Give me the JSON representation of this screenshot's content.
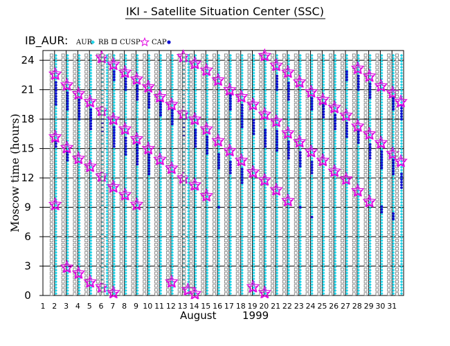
{
  "chart_data": {
    "type": "scatter",
    "title": "IKI - Satellite Situation Center (SSC)",
    "panel_label": "IB_AUR:",
    "legend": [
      {
        "key": "aur",
        "label": "AUR",
        "marker": "cyan-diamond",
        "color": "#1fd3e8"
      },
      {
        "key": "rb",
        "label": "RB",
        "marker": "open-square",
        "color": "#707070"
      },
      {
        "key": "cusp",
        "label": "CUSP",
        "marker": "magenta-star",
        "color": "#e000e0"
      },
      {
        "key": "cap",
        "label": "CAP",
        "marker": "blue-dot",
        "color": "#1010d0"
      }
    ],
    "xlabel_month": "August",
    "xlabel_year": "1999",
    "ylabel": "Moscow time (hours)",
    "xlim": [
      1,
      32
    ],
    "ylim": [
      0,
      25
    ],
    "x_ticks": [
      "1",
      "2",
      "3",
      "4",
      "5",
      "6",
      "7",
      "8",
      "9",
      "10",
      "11",
      "12",
      "13",
      "14",
      "15",
      "16",
      "17",
      "18",
      "19",
      "20",
      "21",
      "22",
      "23",
      "24",
      "25",
      "26",
      "27",
      "28",
      "29",
      "30",
      "31"
    ],
    "y_ticks": [
      "0",
      "3",
      "6",
      "9",
      "12",
      "15",
      "18",
      "21",
      "24"
    ],
    "orbit_columns": [
      {
        "day": 2.0,
        "stars": [
          22.6,
          16.2,
          9.3
        ],
        "cap": [
          [
            19.5,
            22.0
          ],
          [
            15.2,
            16.0
          ]
        ]
      },
      {
        "day": 3.0,
        "stars": [
          21.5,
          15.1,
          2.9
        ],
        "cap": [
          [
            19.0,
            20.8
          ],
          [
            13.8,
            14.8
          ]
        ]
      },
      {
        "day": 4.0,
        "stars": [
          20.6,
          14.0,
          2.3
        ],
        "cap": [
          [
            18.0,
            20.0
          ]
        ]
      },
      {
        "day": 5.0,
        "stars": [
          19.8,
          13.2,
          1.4
        ],
        "cap": [
          [
            17.0,
            19.0
          ]
        ]
      },
      {
        "day": 6.0,
        "stars": [
          24.3,
          18.9,
          12.2,
          0.9
        ],
        "cap": [
          [
            16.5,
            18.4
          ]
        ]
      },
      {
        "day": 6.4,
        "stars": [],
        "cap": []
      },
      {
        "day": 7.0,
        "stars": [
          23.6,
          18.0,
          11.1,
          0.3
        ],
        "cap": [
          [
            15.2,
            17.2
          ],
          [
            22.0,
            23.0
          ]
        ]
      },
      {
        "day": 8.0,
        "stars": [
          22.8,
          17.0,
          10.3
        ],
        "cap": [
          [
            14.4,
            16.2
          ],
          [
            21.0,
            22.2
          ]
        ]
      },
      {
        "day": 9.0,
        "stars": [
          22.1,
          16.0,
          9.3
        ],
        "cap": [
          [
            13.4,
            15.4
          ],
          [
            20.0,
            21.4
          ]
        ]
      },
      {
        "day": 10.0,
        "stars": [
          21.3,
          15.0
        ],
        "cap": [
          [
            12.4,
            14.4
          ],
          [
            19.2,
            20.6
          ]
        ]
      },
      {
        "day": 11.0,
        "stars": [
          20.3,
          13.9
        ],
        "cap": [
          [
            18.4,
            19.8
          ]
        ]
      },
      {
        "day": 12.0,
        "stars": [
          19.5,
          13.0,
          1.4
        ],
        "cap": [
          [
            17.5,
            19.0
          ]
        ]
      },
      {
        "day": 13.0,
        "stars": [
          24.4,
          18.6,
          12.0
        ],
        "cap": [
          [
            16.3,
            18.0
          ]
        ]
      },
      {
        "day": 13.4,
        "stars": [
          0.6
        ],
        "cap": []
      },
      {
        "day": 14.0,
        "stars": [
          23.7,
          18.0,
          11.3,
          0.2
        ],
        "cap": [
          [
            15.2,
            17.0
          ]
        ]
      },
      {
        "day": 15.0,
        "stars": [
          23.0,
          17.0,
          10.2
        ],
        "cap": [
          [
            14.5,
            16.2
          ]
        ]
      },
      {
        "day": 16.0,
        "stars": [
          22.0,
          15.8
        ],
        "cap": [
          [
            9.0,
            9.2
          ],
          [
            13.0,
            14.5
          ]
        ]
      },
      {
        "day": 17.0,
        "stars": [
          21.0,
          14.8
        ],
        "cap": [
          [
            12.5,
            13.8
          ],
          [
            19.0,
            20.4
          ]
        ]
      },
      {
        "day": 18.0,
        "stars": [
          20.3,
          13.8
        ],
        "cap": [
          [
            11.5,
            13.0
          ],
          [
            17.2,
            19.6
          ]
        ]
      },
      {
        "day": 19.0,
        "stars": [
          19.5,
          12.6,
          0.9
        ],
        "cap": [
          [
            16.5,
            18.0
          ]
        ]
      },
      {
        "day": 20.0,
        "stars": [
          24.5,
          18.5,
          11.8,
          0.3
        ],
        "cap": [
          [
            15.2,
            17.0
          ]
        ]
      },
      {
        "day": 21.0,
        "stars": [
          23.5,
          17.8,
          10.8
        ],
        "cap": [
          [
            14.8,
            16.8
          ],
          [
            21.0,
            22.5
          ]
        ]
      },
      {
        "day": 22.0,
        "stars": [
          22.8,
          16.6,
          9.7
        ],
        "cap": [
          [
            14.0,
            15.8
          ],
          [
            20.0,
            21.8
          ]
        ]
      },
      {
        "day": 23.0,
        "stars": [
          21.8,
          15.7
        ],
        "cap": [
          [
            9.0,
            9.2
          ],
          [
            13.2,
            14.8
          ]
        ]
      },
      {
        "day": 24.0,
        "stars": [
          20.8,
          14.7
        ],
        "cap": [
          [
            8.0,
            8.2
          ],
          [
            12.5,
            13.8
          ],
          [
            19.0,
            20.2
          ]
        ]
      },
      {
        "day": 25.0,
        "stars": [
          20.0,
          13.8
        ],
        "cap": [
          [
            18.2,
            19.6
          ]
        ]
      },
      {
        "day": 26.0,
        "stars": [
          19.2,
          12.7
        ],
        "cap": [
          [
            17.0,
            18.4
          ]
        ]
      },
      {
        "day": 27.0,
        "stars": [
          18.4,
          11.9
        ],
        "cap": [
          [
            16.2,
            17.6
          ],
          [
            22.0,
            23.0
          ]
        ]
      },
      {
        "day": 28.0,
        "stars": [
          23.2,
          17.3,
          10.7
        ],
        "cap": [
          [
            15.6,
            16.8
          ],
          [
            21.0,
            22.5
          ]
        ]
      },
      {
        "day": 29.0,
        "stars": [
          22.4,
          16.5,
          9.6
        ],
        "cap": [
          [
            14.0,
            15.6
          ],
          [
            20.2,
            21.8
          ]
        ]
      },
      {
        "day": 30.0,
        "stars": [
          21.4,
          15.6
        ],
        "cap": [
          [
            8.5,
            9.2
          ],
          [
            13.0,
            14.8
          ]
        ]
      },
      {
        "day": 31.0,
        "stars": [
          20.7,
          14.5
        ],
        "cap": [
          [
            7.8,
            8.4
          ],
          [
            12.4,
            13.8
          ],
          [
            19.0,
            20.2
          ]
        ]
      },
      {
        "day": 31.7,
        "stars": [
          19.8,
          13.7
        ],
        "cap": [
          [
            11.0,
            12.5
          ],
          [
            18.0,
            19.6
          ]
        ]
      }
    ]
  }
}
